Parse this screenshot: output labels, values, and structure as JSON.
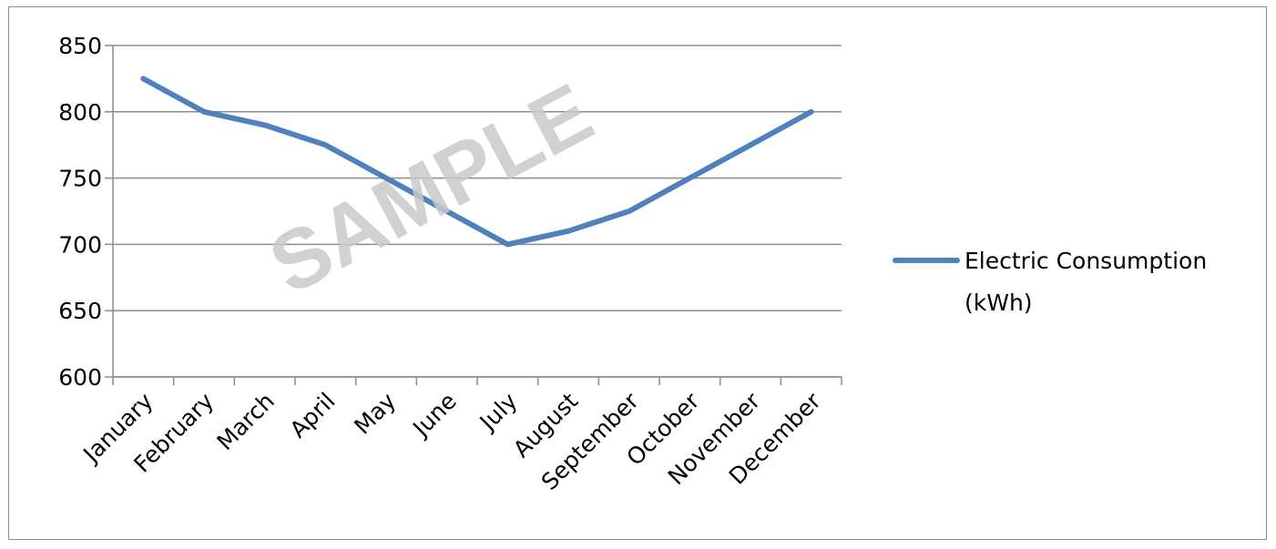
{
  "chart_data": {
    "type": "line",
    "categories": [
      "January",
      "February",
      "March",
      "April",
      "May",
      "June",
      "July",
      "August",
      "September",
      "October",
      "November",
      "December"
    ],
    "series": [
      {
        "name": "Electric Consumption (kWh)",
        "name_lines": [
          "Electric Consumption",
          "(kWh)"
        ],
        "values": [
          825,
          800,
          790,
          775,
          750,
          725,
          700,
          710,
          725,
          750,
          775,
          800
        ],
        "color": "#4f81bd"
      }
    ],
    "ylim": [
      600,
      850
    ],
    "yticks": [
      600,
      650,
      700,
      750,
      800,
      850
    ],
    "grid": "horizontal",
    "legend_position": "right",
    "watermark": "SAMPLE",
    "gridline_color": "#8c8c8c"
  }
}
